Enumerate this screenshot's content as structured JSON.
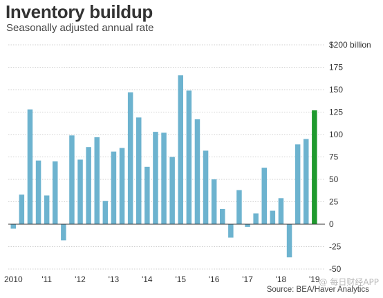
{
  "header": {
    "title": "Inventory buildup",
    "subtitle": "Seasonally adjusted annual rate"
  },
  "footer": {
    "source": "Source: BEA/Haver Analytics",
    "watermark": "@ 每日财经APP"
  },
  "colors": {
    "bar": "#6db3cf",
    "highlight_bar": "#1f9a2e",
    "grid": "#cfcfcf",
    "zero_line": "#333333"
  },
  "chart_data": {
    "type": "bar",
    "title": "Inventory buildup",
    "subtitle": "Seasonally adjusted annual rate",
    "unit": "$ billion",
    "ylim": [
      -50,
      200
    ],
    "y_ticks": [
      200,
      175,
      150,
      125,
      100,
      75,
      50,
      25,
      0,
      -25,
      -50
    ],
    "y_tick_labels": [
      "$200 billion",
      "175",
      "150",
      "125",
      "100",
      "75",
      "50",
      "25",
      "0",
      "-25",
      "-50"
    ],
    "x_tick_labels": [
      "2010",
      "'11",
      "'12",
      "'13",
      "'14",
      "'15",
      "'16",
      "'17",
      "'18",
      "'19"
    ],
    "categories": [
      "2010 Q1",
      "2010 Q2",
      "2010 Q3",
      "2010 Q4",
      "2011 Q1",
      "2011 Q2",
      "2011 Q3",
      "2011 Q4",
      "2012 Q1",
      "2012 Q2",
      "2012 Q3",
      "2012 Q4",
      "2013 Q1",
      "2013 Q2",
      "2013 Q3",
      "2013 Q4",
      "2014 Q1",
      "2014 Q2",
      "2014 Q3",
      "2014 Q4",
      "2015 Q1",
      "2015 Q2",
      "2015 Q3",
      "2015 Q4",
      "2016 Q1",
      "2016 Q2",
      "2016 Q3",
      "2016 Q4",
      "2017 Q1",
      "2017 Q2",
      "2017 Q3",
      "2017 Q4",
      "2018 Q1",
      "2018 Q2",
      "2018 Q3",
      "2018 Q4",
      "2019 Q1"
    ],
    "values": [
      -5,
      33,
      128,
      71,
      32,
      70,
      -18,
      99,
      72,
      86,
      97,
      26,
      81,
      85,
      147,
      119,
      64,
      103,
      102,
      75,
      166,
      149,
      117,
      82,
      50,
      17,
      -15,
      38,
      -3,
      12,
      63,
      15,
      29,
      -37,
      89,
      95,
      127
    ],
    "highlight_last": true,
    "grid": true,
    "legend": "none"
  }
}
